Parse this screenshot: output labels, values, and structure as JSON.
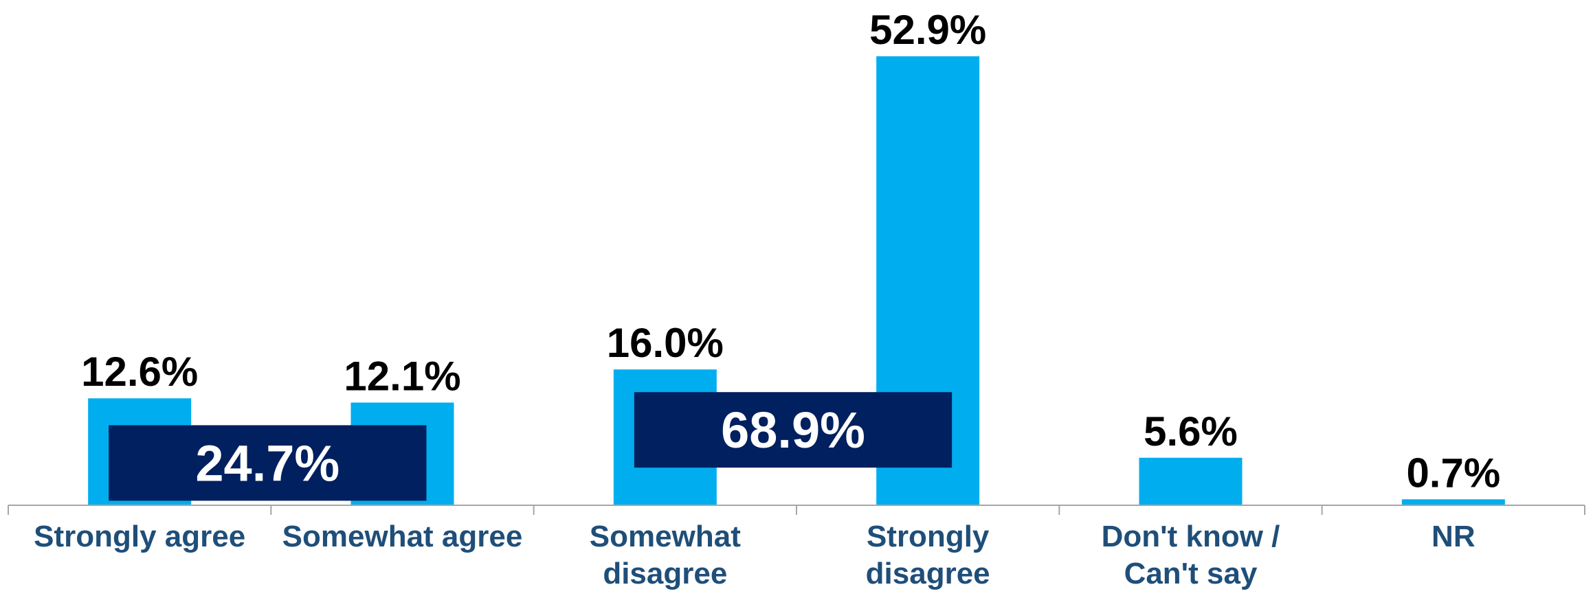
{
  "chart_data": {
    "type": "bar",
    "categories": [
      [
        "Strongly agree"
      ],
      [
        "Somewhat agree"
      ],
      [
        "Somewhat",
        "disagree"
      ],
      [
        "Strongly",
        "disagree"
      ],
      [
        "Don't know /",
        "Can't say"
      ],
      [
        "NR"
      ]
    ],
    "values": [
      12.6,
      12.1,
      16.0,
      52.9,
      5.6,
      0.7
    ],
    "value_labels": [
      "12.6%",
      "12.1%",
      "16.0%",
      "52.9%",
      "5.6%",
      "0.7%"
    ],
    "ylim": [
      0,
      52.9
    ],
    "grid": false,
    "groups": [
      {
        "label": "24.7%",
        "value": 24.7,
        "categories": [
          0,
          1
        ]
      },
      {
        "label": "68.9%",
        "value": 68.9,
        "categories": [
          2,
          3
        ]
      }
    ],
    "colors": {
      "bar": "#00AEEF",
      "group_box": "#002060",
      "category_text": "#1F4E79",
      "axis": "#A6A6A6"
    }
  }
}
